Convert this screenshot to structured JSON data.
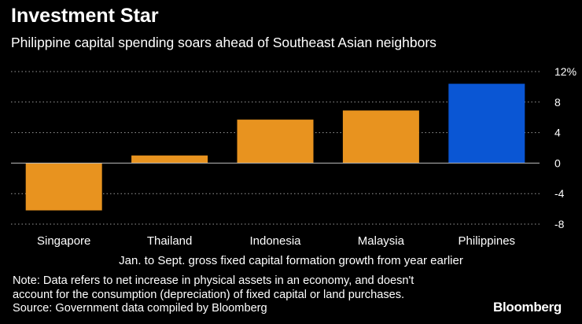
{
  "header": {
    "title": "Investment Star",
    "subtitle": "Philippine capital spending soars ahead of Southeast Asian neighbors"
  },
  "chart_data": {
    "type": "bar",
    "categories": [
      "Singapore",
      "Thailand",
      "Indonesia",
      "Malaysia",
      "Philippines"
    ],
    "values": [
      -6.2,
      1.0,
      5.7,
      6.9,
      10.4
    ],
    "colors": [
      "#e8931f",
      "#e8931f",
      "#e8931f",
      "#e8931f",
      "#0a56d4"
    ],
    "title": "Investment Star",
    "subtitle": "Philippine capital spending soars ahead of Southeast Asian neighbors",
    "xlabel": "Jan. to Sept. gross fixed capital formation growth from year earlier",
    "ylabel": "",
    "ylim": [
      -8,
      12
    ],
    "yticks": [
      12,
      8,
      4,
      0,
      -4,
      -8
    ],
    "ytick_labels": [
      "12%",
      "8",
      "4",
      "0",
      "-4",
      "-8"
    ],
    "grid": true,
    "axis_side": "right"
  },
  "footer": {
    "note": "Note: Data refers to net increase in physical assets in an economy, and doesn't account for the consumption (depreciation) of fixed capital or land purchases.",
    "source": "Source: Government data compiled by Bloomberg",
    "brand": "Bloomberg"
  }
}
